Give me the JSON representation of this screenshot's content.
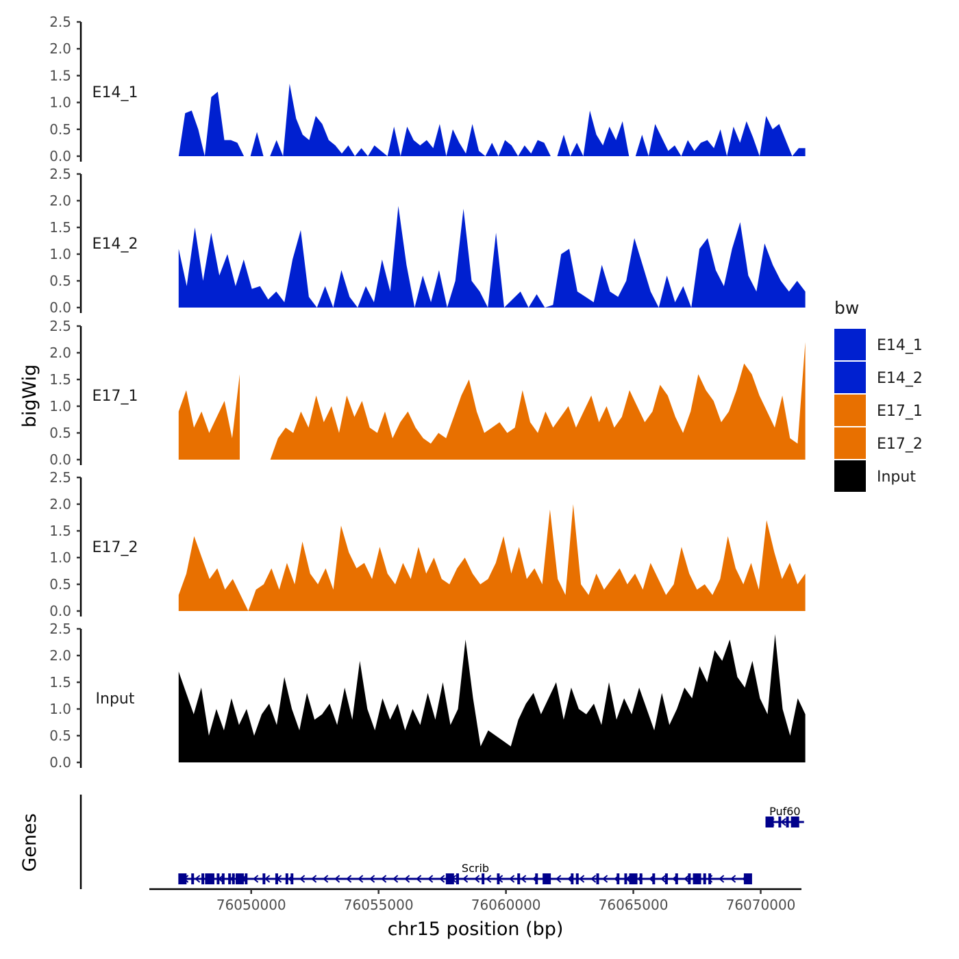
{
  "chart_data": {
    "type": "area",
    "region": "chr15",
    "xlim": [
      76046000,
      76071600
    ],
    "x_ticks": [
      76050000,
      76055000,
      76060000,
      76065000,
      76070000
    ],
    "x_tick_labels": [
      "76050000",
      "76055000",
      "76060000",
      "76065000",
      "76070000"
    ],
    "xlabel": "chr15 position (bp)",
    "ylabel": "bigWig",
    "ylim": [
      0,
      2.5
    ],
    "y_ticks": [
      0.0,
      0.5,
      1.0,
      1.5,
      2.0,
      2.5
    ],
    "y_tick_labels": [
      "0.0",
      "0.5",
      "1.0",
      "1.5",
      "2.0",
      "2.5"
    ],
    "signal_range": [
      76047150,
      76071750
    ],
    "series": [
      {
        "name": "E14_1",
        "color": "#0020D0",
        "values": [
          0,
          0.8,
          0.85,
          0.5,
          0,
          1.1,
          1.2,
          0.3,
          0.3,
          0.25,
          0,
          0,
          0.45,
          0,
          0,
          0.3,
          0,
          1.35,
          0.7,
          0.4,
          0.3,
          0.75,
          0.6,
          0.3,
          0.2,
          0.05,
          0.2,
          0,
          0.15,
          0,
          0.2,
          0.1,
          0,
          0.55,
          0,
          0.55,
          0.3,
          0.2,
          0.3,
          0.15,
          0.6,
          0,
          0.5,
          0.25,
          0.05,
          0.6,
          0.1,
          0,
          0.25,
          0,
          0.3,
          0.2,
          0,
          0.2,
          0.05,
          0.3,
          0.25,
          0,
          0,
          0.4,
          0,
          0.25,
          0,
          0.85,
          0.4,
          0.2,
          0.55,
          0.3,
          0.65,
          0,
          0,
          0.4,
          0,
          0.6,
          0.35,
          0.1,
          0.2,
          0,
          0.3,
          0.1,
          0.25,
          0.3,
          0.15,
          0.5,
          0,
          0.55,
          0.25,
          0.65,
          0.35,
          0,
          0.75,
          0.5,
          0.6,
          0.3,
          0,
          0.15,
          0.15
        ],
        "segments": [
          [
            76047150,
            76071750
          ]
        ]
      },
      {
        "name": "E14_2",
        "color": "#0020D0",
        "values": [
          1.1,
          0.4,
          1.5,
          0.5,
          1.4,
          0.6,
          1.0,
          0.4,
          0.9,
          0.35,
          0.4,
          0.15,
          0.3,
          0.1,
          0.9,
          1.45,
          0.2,
          0,
          0.4,
          0,
          0.7,
          0.2,
          0,
          0.4,
          0.1,
          0.9,
          0.3,
          1.9,
          0.8,
          0,
          0.6,
          0.1,
          0.7,
          0,
          0.5,
          1.85,
          0.5,
          0.3,
          0,
          1.4,
          0,
          0.15,
          0.3,
          0,
          0.25,
          0,
          0.05,
          1.0,
          1.1,
          0.3,
          0.2,
          0.1,
          0.8,
          0.3,
          0.2,
          0.5,
          1.3,
          0.8,
          0.3,
          0,
          0.6,
          0.1,
          0.4,
          0,
          1.1,
          1.3,
          0.7,
          0.4,
          1.1,
          1.6,
          0.6,
          0.3,
          1.2,
          0.8,
          0.5,
          0.3,
          0.5,
          0.3
        ],
        "segments": [
          [
            76047150,
            76071750
          ]
        ]
      },
      {
        "name": "E17_1",
        "color": "#E87000",
        "values": [
          0.9,
          1.3,
          0.6,
          0.9,
          0.5,
          0.8,
          1.1,
          0.4,
          1.6,
          0.9,
          0,
          0,
          0,
          0.4,
          0.6,
          0.5,
          0.9,
          0.6,
          1.2,
          0.7,
          1.0,
          0.5,
          1.2,
          0.8,
          1.1,
          0.6,
          0.5,
          0.9,
          0.4,
          0.7,
          0.9,
          0.6,
          0.4,
          0.3,
          0.5,
          0.4,
          0.8,
          1.2,
          1.5,
          0.9,
          0.5,
          0.6,
          0.7,
          0.5,
          0.6,
          1.3,
          0.7,
          0.5,
          0.9,
          0.6,
          0.8,
          1.0,
          0.6,
          0.9,
          1.2,
          0.7,
          1.0,
          0.6,
          0.8,
          1.3,
          1.0,
          0.7,
          0.9,
          1.4,
          1.2,
          0.8,
          0.5,
          0.9,
          1.6,
          1.3,
          1.1,
          0.7,
          0.9,
          1.3,
          1.8,
          1.6,
          1.2,
          0.9,
          0.6,
          1.2,
          0.4,
          0.3,
          2.2
        ],
        "segments": [
          [
            76047150,
            76049600
          ],
          [
            76050150,
            76071750
          ]
        ]
      },
      {
        "name": "E17_2",
        "color": "#E87000",
        "values": [
          0.3,
          0.7,
          1.4,
          1.0,
          0.6,
          0.8,
          0.4,
          0.6,
          0.3,
          0,
          0.4,
          0.5,
          0.8,
          0.4,
          0.9,
          0.5,
          1.3,
          0.7,
          0.5,
          0.8,
          0.4,
          1.6,
          1.1,
          0.8,
          0.9,
          0.6,
          1.2,
          0.7,
          0.5,
          0.9,
          0.6,
          1.2,
          0.7,
          1.0,
          0.6,
          0.5,
          0.8,
          1.0,
          0.7,
          0.5,
          0.6,
          0.9,
          1.4,
          0.7,
          1.2,
          0.6,
          0.8,
          0.5,
          1.9,
          0.6,
          0.3,
          2.0,
          0.5,
          0.3,
          0.7,
          0.4,
          0.6,
          0.8,
          0.5,
          0.7,
          0.4,
          0.9,
          0.6,
          0.3,
          0.5,
          1.2,
          0.7,
          0.4,
          0.5,
          0.3,
          0.6,
          1.4,
          0.8,
          0.5,
          0.9,
          0.4,
          1.7,
          1.1,
          0.6,
          0.9,
          0.5,
          0.7
        ],
        "segments": [
          [
            76047150,
            76071750
          ]
        ]
      },
      {
        "name": "Input",
        "color": "#000000",
        "values": [
          1.7,
          1.3,
          0.9,
          1.4,
          0.5,
          1.0,
          0.6,
          1.2,
          0.7,
          1.0,
          0.5,
          0.9,
          1.1,
          0.7,
          1.6,
          1.0,
          0.6,
          1.3,
          0.8,
          0.9,
          1.1,
          0.7,
          1.4,
          0.8,
          1.9,
          1.0,
          0.6,
          1.2,
          0.8,
          1.1,
          0.6,
          1.0,
          0.7,
          1.3,
          0.8,
          1.5,
          0.7,
          1.0,
          2.3,
          1.2,
          0.3,
          0.6,
          0.5,
          0.4,
          0.3,
          0.8,
          1.1,
          1.3,
          0.9,
          1.2,
          1.5,
          0.8,
          1.4,
          1.0,
          0.9,
          1.1,
          0.7,
          1.5,
          0.8,
          1.2,
          0.9,
          1.4,
          1.0,
          0.6,
          1.3,
          0.7,
          1.0,
          1.4,
          1.2,
          1.8,
          1.5,
          2.1,
          1.9,
          2.3,
          1.6,
          1.4,
          1.9,
          1.2,
          0.9,
          2.4,
          1.0,
          0.5,
          1.2,
          0.9
        ],
        "segments": [
          [
            76047150,
            76071750
          ]
        ]
      }
    ],
    "legend": {
      "title": "bw",
      "position": "right",
      "entries": [
        {
          "label": "E14_1",
          "color": "#0020D0"
        },
        {
          "label": "E14_2",
          "color": "#0020D0"
        },
        {
          "label": "E17_1",
          "color": "#E87000"
        },
        {
          "label": "E17_2",
          "color": "#E87000"
        },
        {
          "label": "Input",
          "color": "#000000"
        }
      ]
    },
    "genes_track": {
      "title": "Genes",
      "color": "#00008B",
      "genes": [
        {
          "name": "Scrib",
          "start": 76047200,
          "end": 76069600,
          "strand": "-",
          "exons": [
            76047300,
            76047700,
            76048100,
            76048350,
            76048500,
            76048700,
            76048900,
            76049150,
            76049300,
            76049550,
            76049800,
            76050500,
            76051000,
            76051400,
            76051600,
            76057800,
            76058100,
            76059100,
            76059700,
            76060500,
            76061200,
            76061600,
            76062600,
            76062800,
            76063600,
            76064400,
            76064700,
            76065000,
            76065300,
            76065800,
            76066300,
            76066700,
            76067200,
            76067500,
            76067800,
            76068000,
            76069500
          ]
        },
        {
          "name": "Puf60",
          "start": 76070200,
          "end": 76071700,
          "strand": "-",
          "exons": [
            76070350,
            76070750,
            76071050,
            76071350
          ]
        }
      ]
    }
  }
}
